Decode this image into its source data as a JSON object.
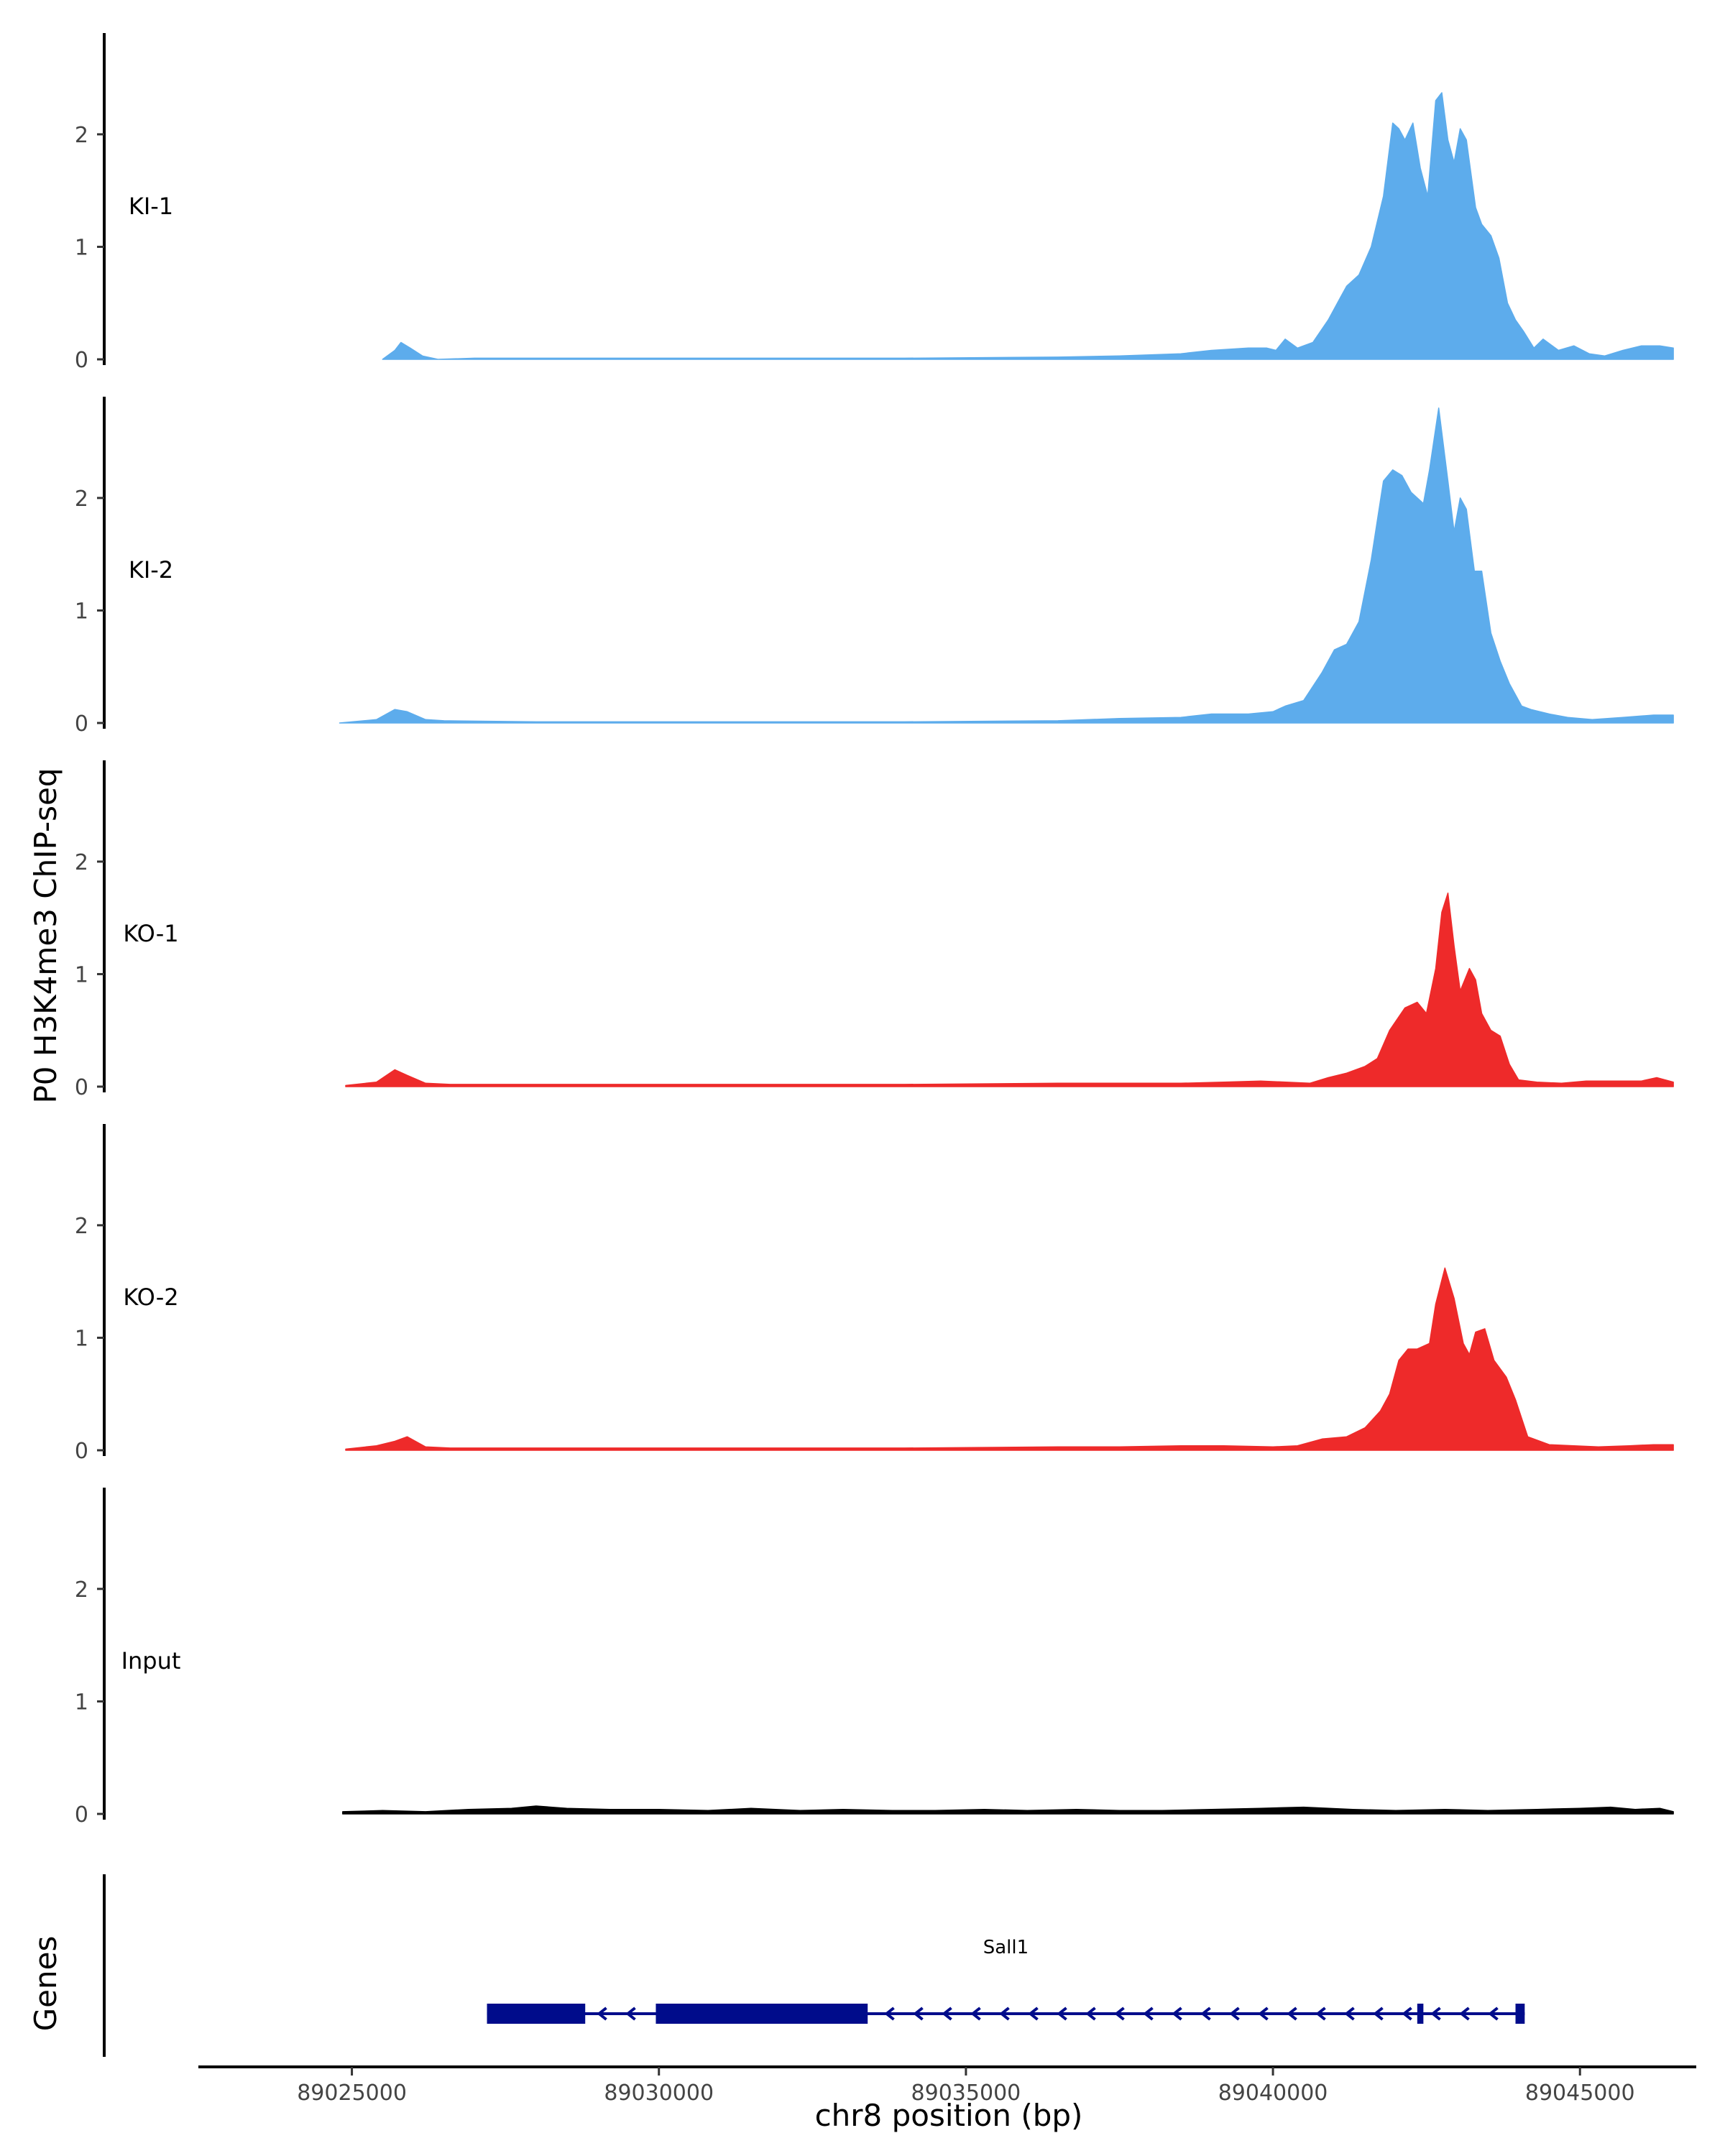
{
  "chart_data": {
    "type": "area",
    "ylabel": "P0 H3K4me3 ChIP-seq",
    "xlabel": "chr8 position (bp)",
    "gene_track_label": "Genes",
    "x_range": [
      89022500,
      89046800
    ],
    "ylim": [
      0,
      2.9
    ],
    "y_ticks": [
      0,
      1,
      2
    ],
    "y_tick_labels": [
      "0",
      "1",
      "2"
    ],
    "x_ticks": [
      89025000,
      89030000,
      89035000,
      89040000,
      89045000
    ],
    "x_tick_labels": [
      "89025000",
      "89030000",
      "89035000",
      "89040000",
      "89045000"
    ],
    "colors": {
      "KI": "#5DACEC",
      "KO": "#EE2A2A",
      "Input": "#000000",
      "gene": "#000C8B"
    },
    "tracks": [
      {
        "name": "KI-1",
        "color": "#5DACEC",
        "x": [
          89025500,
          89025700,
          89025800,
          89025950,
          89026150,
          89026400,
          89027000,
          89030000,
          89032000,
          89034000,
          89036500,
          89037500,
          89038500,
          89039000,
          89039600,
          89039900,
          89040050,
          89040200,
          89040400,
          89040650,
          89040900,
          89041100,
          89041200,
          89041400,
          89041600,
          89041800,
          89041950,
          89042050,
          89042150,
          89042280,
          89042400,
          89042520,
          89042650,
          89042750,
          89042850,
          89042950,
          89043050,
          89043150,
          89043300,
          89043400,
          89043550,
          89043680,
          89043820,
          89043950,
          89044080,
          89044250,
          89044400,
          89044650,
          89044900,
          89045150,
          89045400,
          89045700,
          89046000,
          89046300,
          89046520
        ],
        "y": [
          0.0,
          0.08,
          0.15,
          0.1,
          0.03,
          0.0,
          0.01,
          0.01,
          0.01,
          0.01,
          0.02,
          0.03,
          0.05,
          0.08,
          0.1,
          0.1,
          0.08,
          0.18,
          0.1,
          0.15,
          0.35,
          0.55,
          0.65,
          0.75,
          1.0,
          1.45,
          2.1,
          2.05,
          1.95,
          2.1,
          1.7,
          1.45,
          2.3,
          2.37,
          1.95,
          1.75,
          2.05,
          1.95,
          1.35,
          1.2,
          1.1,
          0.9,
          0.5,
          0.35,
          0.25,
          0.1,
          0.18,
          0.08,
          0.12,
          0.05,
          0.03,
          0.08,
          0.12,
          0.12,
          0.1
        ]
      },
      {
        "name": "KI-2",
        "color": "#5DACEC",
        "x": [
          89024800,
          89025400,
          89025700,
          89025900,
          89026200,
          89026500,
          89028000,
          89030000,
          89032000,
          89034000,
          89036500,
          89037500,
          89038500,
          89039000,
          89039600,
          89040000,
          89040200,
          89040500,
          89040800,
          89041000,
          89041200,
          89041400,
          89041600,
          89041800,
          89041950,
          89042100,
          89042250,
          89042450,
          89042550,
          89042700,
          89042850,
          89042950,
          89043050,
          89043150,
          89043280,
          89043400,
          89043550,
          89043700,
          89043850,
          89044050,
          89044200,
          89044500,
          89044800,
          89045200,
          89045700,
          89046200,
          89046520
        ],
        "y": [
          0.0,
          0.03,
          0.12,
          0.1,
          0.03,
          0.02,
          0.01,
          0.01,
          0.01,
          0.01,
          0.02,
          0.04,
          0.05,
          0.08,
          0.08,
          0.1,
          0.15,
          0.2,
          0.45,
          0.65,
          0.7,
          0.9,
          1.45,
          2.15,
          2.25,
          2.2,
          2.05,
          1.95,
          2.25,
          2.8,
          2.15,
          1.7,
          2.0,
          1.9,
          1.35,
          1.35,
          0.8,
          0.55,
          0.35,
          0.15,
          0.12,
          0.08,
          0.05,
          0.03,
          0.05,
          0.07,
          0.07
        ]
      },
      {
        "name": "KO-1",
        "color": "#EE2A2A",
        "x": [
          89024900,
          89025400,
          89025700,
          89025900,
          89026200,
          89026600,
          89028000,
          89030000,
          89032000,
          89034000,
          89036500,
          89037500,
          89038500,
          89039200,
          89039800,
          89040600,
          89040900,
          89041200,
          89041500,
          89041700,
          89041900,
          89042150,
          89042350,
          89042500,
          89042650,
          89042750,
          89042850,
          89042950,
          89043050,
          89043200,
          89043300,
          89043400,
          89043550,
          89043700,
          89043850,
          89044000,
          89044300,
          89044700,
          89045100,
          89045600,
          89046000,
          89046250,
          89046520
        ],
        "y": [
          0.01,
          0.04,
          0.15,
          0.1,
          0.03,
          0.02,
          0.02,
          0.02,
          0.02,
          0.02,
          0.03,
          0.03,
          0.03,
          0.04,
          0.05,
          0.03,
          0.08,
          0.12,
          0.18,
          0.25,
          0.5,
          0.7,
          0.75,
          0.65,
          1.05,
          1.55,
          1.72,
          1.25,
          0.85,
          1.05,
          0.95,
          0.65,
          0.5,
          0.45,
          0.2,
          0.06,
          0.04,
          0.03,
          0.05,
          0.05,
          0.05,
          0.08,
          0.04
        ]
      },
      {
        "name": "KO-2",
        "color": "#EE2A2A",
        "x": [
          89024900,
          89025400,
          89025700,
          89025900,
          89026200,
          89026600,
          89028000,
          89030000,
          89032000,
          89034000,
          89036500,
          89037500,
          89038500,
          89039200,
          89040000,
          89040400,
          89040800,
          89041200,
          89041500,
          89041750,
          89041900,
          89042050,
          89042200,
          89042350,
          89042550,
          89042650,
          89042800,
          89042950,
          89043100,
          89043200,
          89043300,
          89043450,
          89043600,
          89043800,
          89043950,
          89044150,
          89044500,
          89044900,
          89045300,
          89045800,
          89046200,
          89046520
        ],
        "y": [
          0.01,
          0.04,
          0.08,
          0.12,
          0.03,
          0.02,
          0.02,
          0.02,
          0.02,
          0.02,
          0.03,
          0.03,
          0.04,
          0.04,
          0.03,
          0.04,
          0.1,
          0.12,
          0.2,
          0.35,
          0.5,
          0.8,
          0.9,
          0.9,
          0.95,
          1.3,
          1.62,
          1.35,
          0.95,
          0.85,
          1.05,
          1.08,
          0.8,
          0.65,
          0.45,
          0.12,
          0.05,
          0.04,
          0.03,
          0.04,
          0.05,
          0.05
        ]
      },
      {
        "name": "Input",
        "color": "#000000",
        "x": [
          89024850,
          89025500,
          89026200,
          89026900,
          89027600,
          89028000,
          89028500,
          89029200,
          89030000,
          89030800,
          89031500,
          89032300,
          89033000,
          89033800,
          89034500,
          89035300,
          89036000,
          89036800,
          89037500,
          89038200,
          89039000,
          89039800,
          89040500,
          89041300,
          89042000,
          89042800,
          89043500,
          89044300,
          89045000,
          89045500,
          89045900,
          89046300,
          89046520
        ],
        "y": [
          0.02,
          0.03,
          0.02,
          0.04,
          0.05,
          0.07,
          0.05,
          0.04,
          0.04,
          0.03,
          0.05,
          0.03,
          0.04,
          0.03,
          0.03,
          0.04,
          0.03,
          0.04,
          0.03,
          0.03,
          0.04,
          0.05,
          0.06,
          0.04,
          0.03,
          0.04,
          0.03,
          0.04,
          0.05,
          0.06,
          0.04,
          0.05,
          0.02
        ]
      }
    ],
    "gene": {
      "name": "Sall1",
      "strand": "-",
      "start": 89027200,
      "end": 89044100,
      "exons": [
        [
          89027200,
          89028800
        ],
        [
          89029950,
          89033400
        ],
        [
          89042350,
          89042450
        ],
        [
          89043950,
          89044100
        ]
      ]
    }
  }
}
